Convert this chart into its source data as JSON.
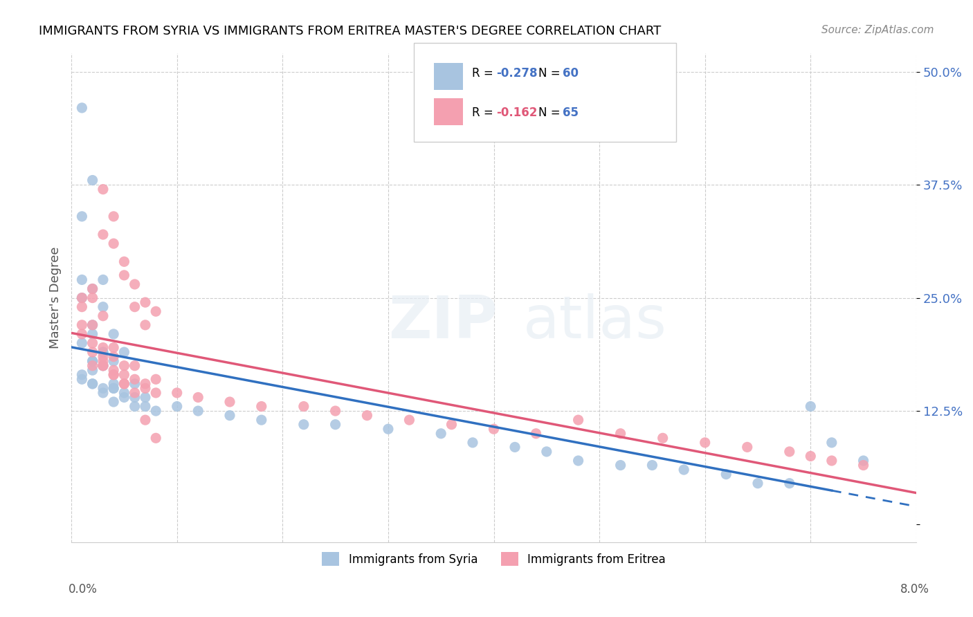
{
  "title": "IMMIGRANTS FROM SYRIA VS IMMIGRANTS FROM ERITREA MASTER'S DEGREE CORRELATION CHART",
  "source": "Source: ZipAtlas.com",
  "ylabel": "Master's Degree",
  "ytick_vals": [
    0.0,
    0.125,
    0.25,
    0.375,
    0.5
  ],
  "ytick_labels": [
    "",
    "12.5%",
    "25.0%",
    "37.5%",
    "50.0%"
  ],
  "xmin": 0.0,
  "xmax": 0.08,
  "ymin": -0.02,
  "ymax": 0.52,
  "syria_color": "#a8c4e0",
  "eritrea_color": "#f4a0b0",
  "syria_line_color": "#3070c0",
  "eritrea_line_color": "#e05878",
  "syria_R": -0.278,
  "syria_N": 60,
  "eritrea_R": -0.162,
  "eritrea_N": 65,
  "syria_x": [
    0.001,
    0.002,
    0.001,
    0.001,
    0.003,
    0.002,
    0.001,
    0.003,
    0.002,
    0.004,
    0.002,
    0.001,
    0.003,
    0.003,
    0.002,
    0.004,
    0.005,
    0.003,
    0.002,
    0.001,
    0.001,
    0.002,
    0.002,
    0.003,
    0.006,
    0.004,
    0.003,
    0.007,
    0.005,
    0.004,
    0.006,
    0.008,
    0.01,
    0.012,
    0.015,
    0.018,
    0.022,
    0.025,
    0.03,
    0.035,
    0.038,
    0.042,
    0.045,
    0.048,
    0.052,
    0.055,
    0.058,
    0.062,
    0.065,
    0.068,
    0.07,
    0.072,
    0.075,
    0.002,
    0.003,
    0.004,
    0.004,
    0.005,
    0.006,
    0.007
  ],
  "syria_y": [
    0.46,
    0.38,
    0.34,
    0.27,
    0.27,
    0.26,
    0.25,
    0.24,
    0.22,
    0.21,
    0.21,
    0.2,
    0.19,
    0.19,
    0.18,
    0.18,
    0.19,
    0.175,
    0.17,
    0.165,
    0.16,
    0.155,
    0.155,
    0.15,
    0.155,
    0.15,
    0.145,
    0.14,
    0.14,
    0.135,
    0.13,
    0.125,
    0.13,
    0.125,
    0.12,
    0.115,
    0.11,
    0.11,
    0.105,
    0.1,
    0.09,
    0.085,
    0.08,
    0.07,
    0.065,
    0.065,
    0.06,
    0.055,
    0.045,
    0.045,
    0.13,
    0.09,
    0.07,
    0.18,
    0.175,
    0.155,
    0.15,
    0.145,
    0.14,
    0.13
  ],
  "eritrea_x": [
    0.001,
    0.001,
    0.001,
    0.002,
    0.001,
    0.002,
    0.002,
    0.003,
    0.002,
    0.002,
    0.003,
    0.003,
    0.004,
    0.003,
    0.003,
    0.004,
    0.004,
    0.005,
    0.004,
    0.005,
    0.006,
    0.005,
    0.006,
    0.007,
    0.008,
    0.007,
    0.008,
    0.01,
    0.012,
    0.015,
    0.018,
    0.022,
    0.025,
    0.028,
    0.032,
    0.036,
    0.04,
    0.044,
    0.048,
    0.052,
    0.056,
    0.06,
    0.064,
    0.068,
    0.07,
    0.072,
    0.075,
    0.003,
    0.004,
    0.005,
    0.006,
    0.007,
    0.008,
    0.002,
    0.003,
    0.004,
    0.005,
    0.006,
    0.007,
    0.008,
    0.003,
    0.004,
    0.005,
    0.006,
    0.007
  ],
  "eritrea_y": [
    0.25,
    0.24,
    0.22,
    0.26,
    0.21,
    0.25,
    0.2,
    0.23,
    0.19,
    0.22,
    0.195,
    0.185,
    0.195,
    0.175,
    0.18,
    0.185,
    0.17,
    0.175,
    0.165,
    0.165,
    0.175,
    0.155,
    0.16,
    0.155,
    0.16,
    0.15,
    0.145,
    0.145,
    0.14,
    0.135,
    0.13,
    0.13,
    0.125,
    0.12,
    0.115,
    0.11,
    0.105,
    0.1,
    0.115,
    0.1,
    0.095,
    0.09,
    0.085,
    0.08,
    0.075,
    0.07,
    0.065,
    0.37,
    0.34,
    0.275,
    0.265,
    0.245,
    0.235,
    0.175,
    0.175,
    0.165,
    0.155,
    0.145,
    0.115,
    0.095,
    0.32,
    0.31,
    0.29,
    0.24,
    0.22
  ]
}
